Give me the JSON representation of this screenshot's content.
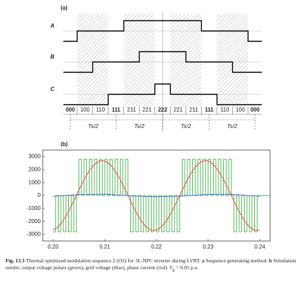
{
  "panel_a": {
    "label": "(a)",
    "signals": [
      "A",
      "B",
      "C"
    ],
    "states": [
      {
        "label": "000",
        "color": "#000000"
      },
      {
        "label": "100",
        "color": "#d62728"
      },
      {
        "label": "110",
        "color": "#1f5fbf"
      },
      {
        "label": "111",
        "color": "#000000"
      },
      {
        "label": "211",
        "color": "#d62728"
      },
      {
        "label": "221",
        "color": "#1f5fbf"
      },
      {
        "label": "222",
        "color": "#000000"
      },
      {
        "label": "221",
        "color": "#1f5fbf"
      },
      {
        "label": "211",
        "color": "#d62728"
      },
      {
        "label": "111",
        "color": "#000000"
      },
      {
        "label": "110",
        "color": "#1f5fbf"
      },
      {
        "label": "100",
        "color": "#d62728"
      },
      {
        "label": "000",
        "color": "#000000"
      }
    ],
    "half_periods": [
      "Ts/2",
      "Ts/2",
      "Ts/2",
      "Ts/2"
    ]
  },
  "chart_data": {
    "type": "line",
    "label": "(b)",
    "xlim": [
      0.198,
      0.242
    ],
    "ylim": [
      -3500,
      3500
    ],
    "xticks": [
      {
        "value": 0.2,
        "label": "0.20"
      },
      0.21,
      0.22,
      0.23,
      0.24
    ],
    "yticks": [
      -3000,
      -2000,
      -1000,
      0,
      1000,
      2000,
      3000
    ],
    "series": [
      {
        "color": "#3cb043",
        "step": true,
        "x": [
          0.2,
          0.2005,
          0.201,
          0.2015,
          0.202,
          0.2025,
          0.203,
          0.2035,
          0.204,
          0.2045,
          0.205,
          0.2055,
          0.206,
          0.2065,
          0.207,
          0.2075,
          0.208,
          0.2085,
          0.209,
          0.2095,
          0.21,
          0.2105,
          0.211,
          0.2115,
          0.212,
          0.2125,
          0.213,
          0.2135,
          0.214,
          0.2145,
          0.215,
          0.2155,
          0.216,
          0.2165,
          0.217,
          0.2175,
          0.218,
          0.2185,
          0.219,
          0.2195,
          0.22,
          0.2205,
          0.221,
          0.2215,
          0.222,
          0.2225,
          0.223,
          0.2235,
          0.224,
          0.2245,
          0.225,
          0.2255,
          0.226,
          0.2265,
          0.227,
          0.2275,
          0.228,
          0.2285,
          0.229,
          0.2295,
          0.23,
          0.2305,
          0.231,
          0.2315,
          0.232,
          0.2325,
          0.233,
          0.2335,
          0.234,
          0.2345,
          0.235,
          0.2355,
          0.236,
          0.2365,
          0.237,
          0.2375,
          0.238,
          0.2385,
          0.239,
          0.2395
        ],
        "values": [
          -2800,
          0,
          -2800,
          0,
          -2800,
          0,
          -2800,
          0,
          -2800,
          0,
          2800,
          0,
          2800,
          0,
          2800,
          0,
          2800,
          0,
          2800,
          0,
          2800,
          0,
          2800,
          0,
          2800,
          0,
          2800,
          0,
          2800,
          0,
          -2800,
          0,
          -2800,
          0,
          -2800,
          0,
          -2800,
          0,
          -2800,
          0,
          -2800,
          0,
          -2800,
          0,
          -2800,
          0,
          -2800,
          0,
          -2800,
          0,
          2800,
          0,
          2800,
          0,
          2800,
          0,
          2800,
          0,
          2800,
          0,
          2800,
          0,
          2800,
          0,
          2800,
          0,
          2800,
          0,
          2800,
          0,
          -2800,
          0,
          -2800,
          0,
          -2800,
          0,
          -2800,
          0,
          -2800,
          0
        ]
      },
      {
        "color": "#3a6fd8",
        "step": false,
        "x": [
          0.2,
          0.205,
          0.21,
          0.215,
          0.22,
          0.225,
          0.23,
          0.235,
          0.24
        ],
        "values": [
          -60,
          80,
          100,
          -20,
          -100,
          -40,
          90,
          80,
          -50
        ]
      },
      {
        "color": "#e8413c",
        "step": false,
        "x": [
          0.2,
          0.201,
          0.202,
          0.203,
          0.204,
          0.205,
          0.206,
          0.207,
          0.208,
          0.209,
          0.21,
          0.211,
          0.212,
          0.213,
          0.214,
          0.215,
          0.216,
          0.217,
          0.218,
          0.219,
          0.22,
          0.221,
          0.222,
          0.223,
          0.224,
          0.225,
          0.226,
          0.227,
          0.228,
          0.229,
          0.23,
          0.231,
          0.232,
          0.233,
          0.234,
          0.235,
          0.236,
          0.237,
          0.238,
          0.239,
          0.24
        ],
        "values": [
          -2670,
          -2410,
          -1910,
          -1230,
          -420,
          420,
          1230,
          1910,
          2410,
          2670,
          2670,
          2410,
          1910,
          1230,
          420,
          -420,
          -1230,
          -1910,
          -2410,
          -2670,
          -2670,
          -2410,
          -1910,
          -1230,
          -420,
          420,
          1230,
          1910,
          2410,
          2670,
          2670,
          2410,
          1910,
          1230,
          420,
          -420,
          -1230,
          -1910,
          -2410,
          -2670,
          -2670
        ]
      }
    ]
  },
  "caption": [
    {
      "text": "Fig. 13.3",
      "style": "bold"
    },
    {
      "text": " Thermal optimized modulation sequence 2 (O2) for 3L-NPC inverter during LVRT. ",
      "style": "normal"
    },
    {
      "text": "a",
      "style": "bold"
    },
    {
      "text": " Sequence generating method. ",
      "style": "normal"
    },
    {
      "text": "b",
      "style": "bold"
    },
    {
      "text": " Simulation results: output voltage pulses (",
      "style": "normal"
    },
    {
      "text": "green",
      "style": "italic"
    },
    {
      "text": "), grid voltage (",
      "style": "normal"
    },
    {
      "text": "blue",
      "style": "italic"
    },
    {
      "text": "), phase current (",
      "style": "normal"
    },
    {
      "text": "red",
      "style": "italic"
    },
    {
      "text": "). ",
      "style": "normal"
    },
    {
      "text": "V",
      "style": "italic"
    },
    {
      "text": "g",
      "style": "sub"
    },
    {
      "text": " = 0.05 p.u",
      "style": "normal"
    }
  ]
}
